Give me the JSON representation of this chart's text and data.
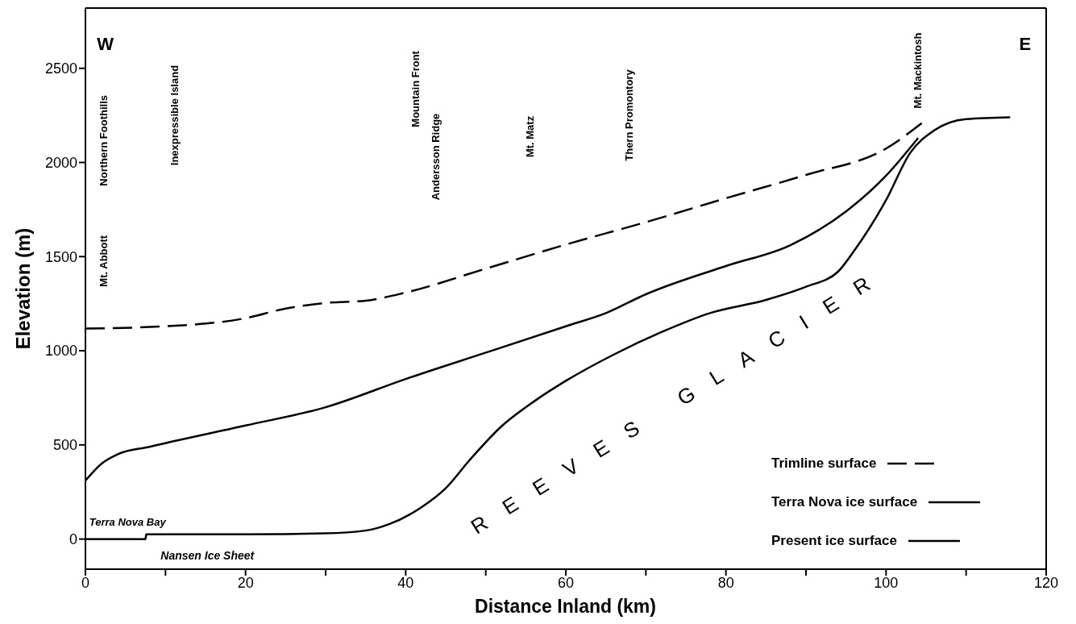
{
  "chart_data": {
    "type": "line",
    "xlabel": "Distance Inland (km)",
    "ylabel": "Elevation (m)",
    "xlim": [
      0,
      120
    ],
    "ylim": [
      -160,
      2820
    ],
    "xticks": [
      0,
      {
        "value": 10,
        "label": null
      },
      20,
      {
        "value": 30,
        "label": null
      },
      40,
      {
        "value": 50,
        "label": null
      },
      60,
      {
        "value": 70,
        "label": null
      },
      80,
      {
        "value": 90,
        "label": null
      },
      100,
      {
        "value": 110,
        "label": null
      },
      120
    ],
    "yticks": [
      0,
      500,
      1000,
      1500,
      2000,
      2500
    ],
    "grid": false,
    "legend": "bottom right",
    "marker": "none",
    "series": [
      {
        "name": "Trimline surface",
        "color": "#000000",
        "line_style": "dashed",
        "x": [
          0,
          10,
          20,
          25,
          30,
          35,
          40,
          50,
          60,
          70,
          80,
          90,
          100,
          104.5
        ],
        "values": [
          1118,
          1130,
          1173,
          1224,
          1254,
          1266,
          1309,
          1436,
          1564,
          1683,
          1810,
          1934,
          2074,
          2210
        ]
      },
      {
        "name": "Terra Nova ice surface",
        "color": "#000000",
        "line_style": "solid",
        "x": [
          0,
          2,
          4,
          8,
          20,
          30,
          40,
          50,
          60,
          65,
          70,
          80,
          88,
          95,
          100,
          104
        ],
        "values": [
          310,
          400,
          450,
          490,
          603,
          700,
          850,
          990,
          1130,
          1200,
          1300,
          1450,
          1560,
          1740,
          1930,
          2130
        ]
      },
      {
        "name": "Present ice surface",
        "color": "#000000",
        "line_style": "solid",
        "x": [
          0,
          7.5,
          7.6,
          20,
          30,
          35,
          38,
          42,
          45,
          48,
          52,
          56,
          60,
          66,
          72,
          78,
          85,
          90,
          94,
          96,
          100,
          103,
          106,
          110,
          115.5
        ],
        "values": [
          0,
          0,
          25,
          25,
          30,
          45,
          80,
          170,
          270,
          420,
          600,
          730,
          840,
          980,
          1100,
          1200,
          1270,
          1340,
          1420,
          1530,
          1800,
          2050,
          2170,
          2230,
          2240
        ]
      }
    ],
    "annotations": [
      "W",
      "E",
      "Mt. Abbott",
      "Northern Foothills",
      "Inexpressible Island",
      "Mountain Front",
      "Andersson Ridge",
      "Mt. Matz",
      "Thern Promontory",
      "Mt. Mackintosh",
      "Terra Nova Bay",
      "Nansen Ice Sheet",
      "REEVES GLACIER"
    ]
  }
}
